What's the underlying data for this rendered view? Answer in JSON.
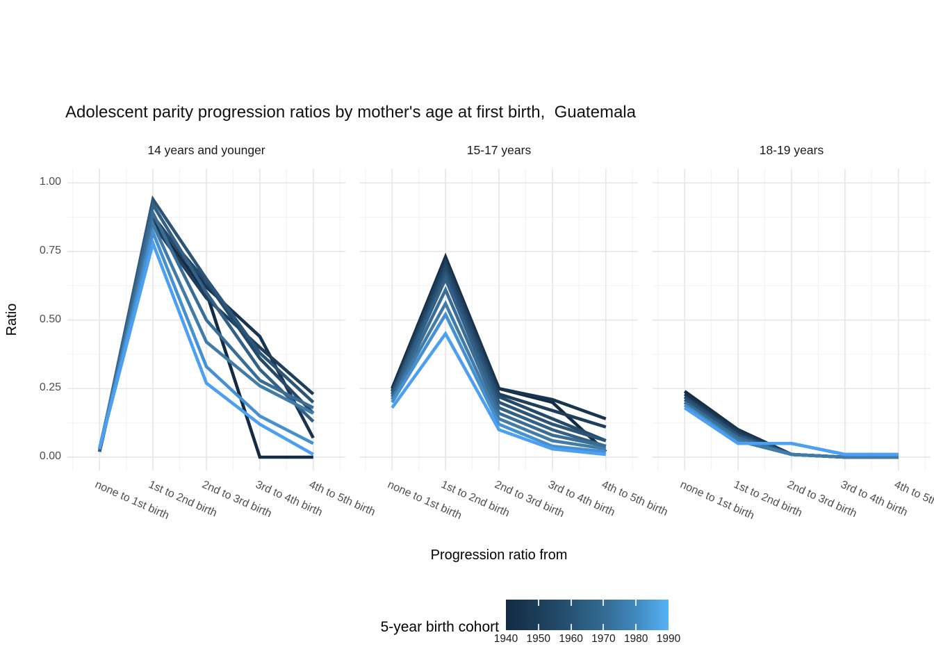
{
  "title": "Adolescent parity progression ratios by mother's age at first birth,  Guatemala",
  "y_axis": {
    "label": "Ratio",
    "ticks": [
      "0.00",
      "0.25",
      "0.50",
      "0.75",
      "1.00"
    ]
  },
  "x_axis": {
    "label": "Progression ratio from"
  },
  "legend": {
    "title": "5-year birth cohort",
    "tick_labels": [
      "1940",
      "1950",
      "1960",
      "1970",
      "1980",
      "1990"
    ],
    "gradient_stops": [
      "#132B43",
      "#1C3E58",
      "#275374",
      "#336B93",
      "#4189BE",
      "#56B1F7"
    ]
  },
  "chart_data": {
    "type": "line",
    "title": "Adolescent parity progression ratios by mother's age at first birth,  Guatemala",
    "xlabel": "Progression ratio from",
    "ylabel": "Ratio",
    "ylim": [
      0,
      1
    ],
    "grid": true,
    "legend_position": "bottom",
    "color_scale": {
      "name": "5-year birth cohort",
      "domain": [
        1940,
        1990
      ],
      "low": "#132B43",
      "high": "#56B1F7"
    },
    "categories": [
      "none to 1st birth",
      "1st to 2nd birth",
      "2nd to 3rd birth",
      "3rd to 4th birth",
      "4th to 5th birth"
    ],
    "facets": [
      {
        "label": "14 years and younger",
        "series": [
          {
            "name": "1940",
            "color": "#132B43",
            "values": [
              0.02,
              0.86,
              0.6,
              0.0,
              0.0
            ]
          },
          {
            "name": "1945",
            "color": "#18344F",
            "values": [
              0.02,
              0.88,
              0.62,
              0.44,
              0.07
            ]
          },
          {
            "name": "1950",
            "color": "#1E3E5C",
            "values": [
              0.02,
              0.85,
              0.58,
              0.4,
              0.23
            ]
          },
          {
            "name": "1955",
            "color": "#244969",
            "values": [
              0.02,
              0.87,
              0.64,
              0.36,
              0.16
            ]
          },
          {
            "name": "1960",
            "color": "#2B5477",
            "values": [
              0.02,
              0.94,
              0.65,
              0.38,
              0.2
            ]
          },
          {
            "name": "1965",
            "color": "#326086",
            "values": [
              0.02,
              0.92,
              0.6,
              0.32,
              0.13
            ]
          },
          {
            "name": "1970",
            "color": "#396D96",
            "values": [
              0.03,
              0.89,
              0.5,
              0.28,
              0.18
            ]
          },
          {
            "name": "1975",
            "color": "#417BA8",
            "values": [
              0.03,
              0.85,
              0.42,
              0.26,
              0.16
            ]
          },
          {
            "name": "1980",
            "color": "#4590D0",
            "values": [
              0.03,
              0.82,
              0.33,
              0.15,
              0.05
            ]
          },
          {
            "name": "1985",
            "color": "#4D9FF1",
            "values": [
              0.03,
              0.78,
              0.27,
              0.12,
              0.01
            ]
          }
        ]
      },
      {
        "label": "15-17 years",
        "series": [
          {
            "name": "1940",
            "color": "#132B43",
            "values": [
              0.25,
              0.73,
              0.25,
              0.2,
              0.02
            ]
          },
          {
            "name": "1945",
            "color": "#18344F",
            "values": [
              0.24,
              0.72,
              0.25,
              0.21,
              0.14
            ]
          },
          {
            "name": "1950",
            "color": "#1E3E5C",
            "values": [
              0.24,
              0.71,
              0.23,
              0.17,
              0.11
            ]
          },
          {
            "name": "1955",
            "color": "#244969",
            "values": [
              0.23,
              0.69,
              0.22,
              0.14,
              0.06
            ]
          },
          {
            "name": "1960",
            "color": "#2B5477",
            "values": [
              0.23,
              0.67,
              0.2,
              0.12,
              0.06
            ]
          },
          {
            "name": "1965",
            "color": "#326086",
            "values": [
              0.22,
              0.65,
              0.18,
              0.1,
              0.04
            ]
          },
          {
            "name": "1970",
            "color": "#396D96",
            "values": [
              0.21,
              0.61,
              0.16,
              0.08,
              0.04
            ]
          },
          {
            "name": "1975",
            "color": "#417BA8",
            "values": [
              0.21,
              0.56,
              0.14,
              0.06,
              0.03
            ]
          },
          {
            "name": "1980",
            "color": "#4590D0",
            "values": [
              0.2,
              0.52,
              0.12,
              0.04,
              0.02
            ]
          },
          {
            "name": "1985",
            "color": "#4D9FF1",
            "values": [
              0.18,
              0.45,
              0.1,
              0.03,
              0.01
            ]
          }
        ]
      },
      {
        "label": "18-19 years",
        "series": [
          {
            "name": "1940",
            "color": "#132B43",
            "values": [
              0.24,
              0.1,
              0.01,
              0.0,
              0.0
            ]
          },
          {
            "name": "1945",
            "color": "#18344F",
            "values": [
              0.23,
              0.1,
              0.01,
              0.0,
              0.0
            ]
          },
          {
            "name": "1950",
            "color": "#1E3E5C",
            "values": [
              0.22,
              0.09,
              0.01,
              0.0,
              0.0
            ]
          },
          {
            "name": "1955",
            "color": "#244969",
            "values": [
              0.22,
              0.08,
              0.01,
              0.0,
              0.0
            ]
          },
          {
            "name": "1960",
            "color": "#2B5477",
            "values": [
              0.21,
              0.08,
              0.01,
              0.0,
              0.0
            ]
          },
          {
            "name": "1965",
            "color": "#326086",
            "values": [
              0.2,
              0.07,
              0.01,
              0.0,
              0.0
            ]
          },
          {
            "name": "1970",
            "color": "#396D96",
            "values": [
              0.2,
              0.07,
              0.01,
              0.0,
              0.0
            ]
          },
          {
            "name": "1975",
            "color": "#417BA8",
            "values": [
              0.19,
              0.06,
              0.01,
              0.0,
              0.0
            ]
          },
          {
            "name": "1980",
            "color": "#4590D0",
            "values": [
              0.19,
              0.05,
              0.05,
              0.01,
              0.01
            ]
          },
          {
            "name": "1985",
            "color": "#4D9FF1",
            "values": [
              0.18,
              0.05,
              0.05,
              0.01,
              0.01
            ]
          }
        ]
      }
    ]
  }
}
